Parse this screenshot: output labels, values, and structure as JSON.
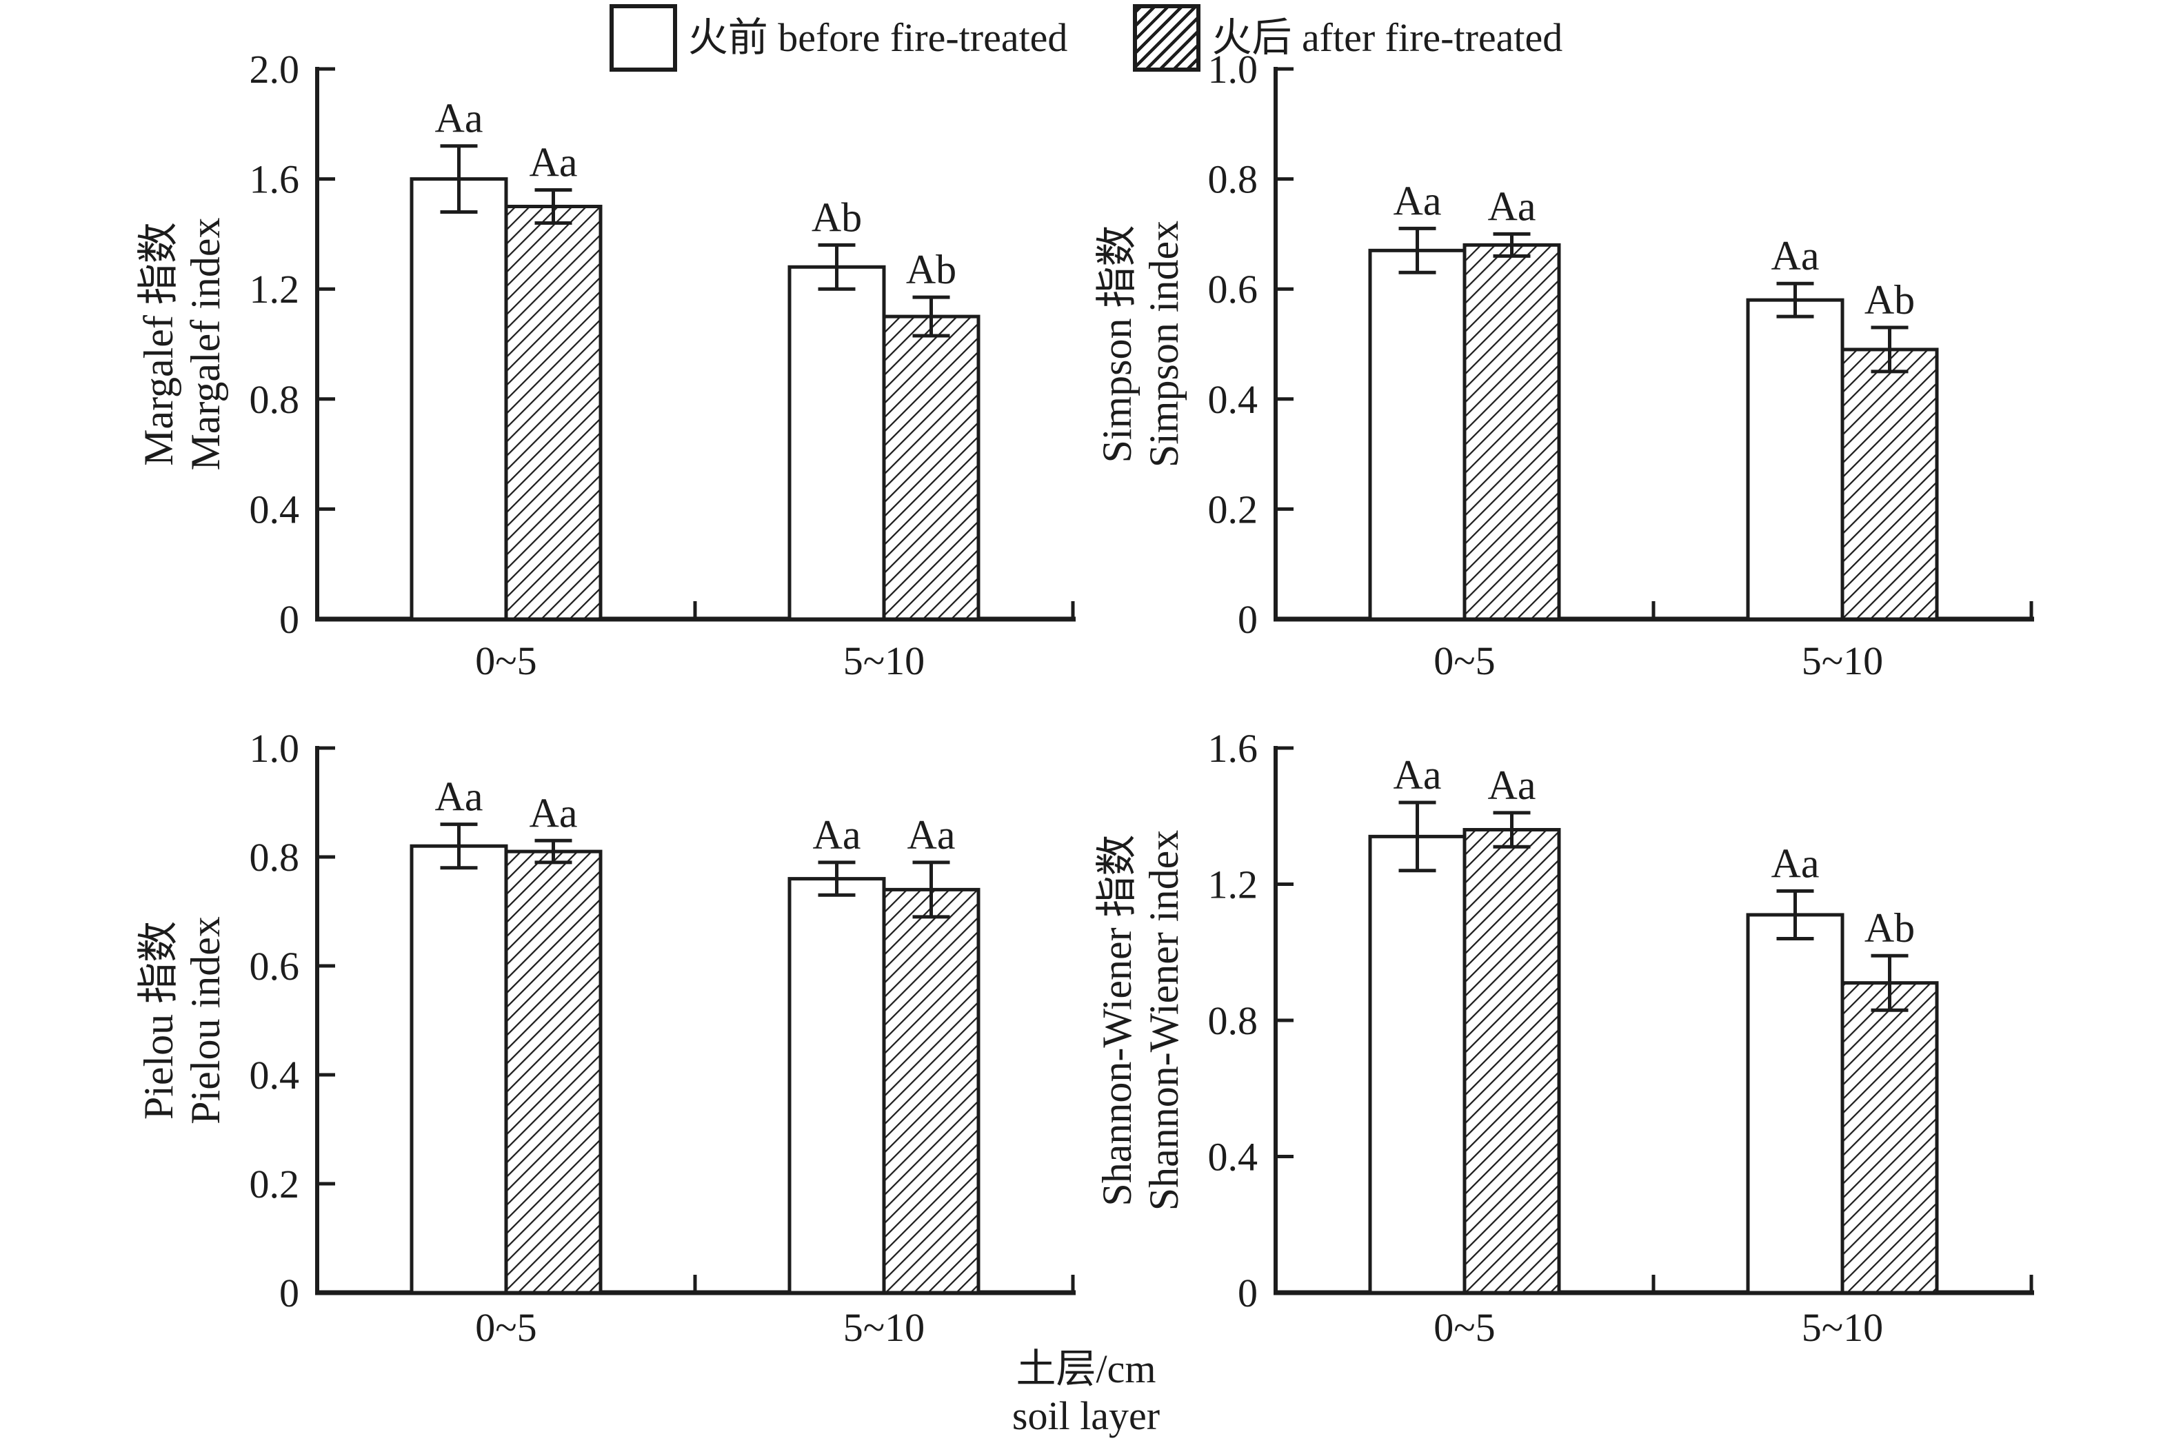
{
  "page": {
    "background": "#ffffff",
    "ink": "#1c1c1c"
  },
  "legend": {
    "items": [
      {
        "label": "火前 before fire-treated",
        "swatch": "plain"
      },
      {
        "label": "火后 after fire-treated",
        "swatch": "hatched"
      }
    ]
  },
  "x_axis_label": {
    "line1": "土层/cm",
    "line2": "soil layer"
  },
  "chart_data": [
    {
      "id": "margalef-index",
      "type": "bar",
      "ylabel_cn": "Margalef 指数",
      "ylabel_en": "Margalef index",
      "ylim": [
        0,
        2.0
      ],
      "yticks": [
        "0",
        "0.4",
        "0.8",
        "1.2",
        "1.6",
        "2.0"
      ],
      "categories": [
        "0~5",
        "5~10"
      ],
      "grid": "off",
      "series": [
        {
          "name": "火前 before fire-treated",
          "pattern": "plain",
          "values": [
            1.6,
            1.28
          ],
          "errors": [
            0.12,
            0.08
          ],
          "sig_labels": [
            "Aa",
            "Ab"
          ]
        },
        {
          "name": "火后 after fire-treated",
          "pattern": "hatched",
          "values": [
            1.5,
            1.1
          ],
          "errors": [
            0.06,
            0.07
          ],
          "sig_labels": [
            "Aa",
            "Ab"
          ]
        }
      ]
    },
    {
      "id": "simpson-index",
      "type": "bar",
      "ylabel_cn": "Simpson 指数",
      "ylabel_en": "Simpson index",
      "ylim": [
        0,
        1.0
      ],
      "yticks": [
        "0",
        "0.2",
        "0.4",
        "0.6",
        "0.8",
        "1.0"
      ],
      "categories": [
        "0~5",
        "5~10"
      ],
      "grid": "off",
      "series": [
        {
          "name": "火前 before fire-treated",
          "pattern": "plain",
          "values": [
            0.67,
            0.58
          ],
          "errors": [
            0.04,
            0.03
          ],
          "sig_labels": [
            "Aa",
            "Aa"
          ]
        },
        {
          "name": "火后 after fire-treated",
          "pattern": "hatched",
          "values": [
            0.68,
            0.49
          ],
          "errors": [
            0.02,
            0.04
          ],
          "sig_labels": [
            "Aa",
            "Ab"
          ]
        }
      ]
    },
    {
      "id": "pielou-index",
      "type": "bar",
      "ylabel_cn": "Pielou 指数",
      "ylabel_en": "Pielou index",
      "ylim": [
        0,
        1.0
      ],
      "yticks": [
        "0",
        "0.2",
        "0.4",
        "0.6",
        "0.8",
        "1.0"
      ],
      "categories": [
        "0~5",
        "5~10"
      ],
      "grid": "off",
      "series": [
        {
          "name": "火前 before fire-treated",
          "pattern": "plain",
          "values": [
            0.82,
            0.76
          ],
          "errors": [
            0.04,
            0.03
          ],
          "sig_labels": [
            "Aa",
            "Aa"
          ]
        },
        {
          "name": "火后 after fire-treated",
          "pattern": "hatched",
          "values": [
            0.81,
            0.74
          ],
          "errors": [
            0.02,
            0.05
          ],
          "sig_labels": [
            "Aa",
            "Aa"
          ]
        }
      ]
    },
    {
      "id": "shannon-wiener-index",
      "type": "bar",
      "ylabel_cn": "Shannon-Wiener 指数",
      "ylabel_en": "Shannon-Wiener index",
      "ylim": [
        0,
        1.6
      ],
      "yticks": [
        "0",
        "0.4",
        "0.8",
        "1.2",
        "1.6"
      ],
      "categories": [
        "0~5",
        "5~10"
      ],
      "grid": "off",
      "series": [
        {
          "name": "火前 before fire-treated",
          "pattern": "plain",
          "values": [
            1.34,
            1.11
          ],
          "errors": [
            0.1,
            0.07
          ],
          "sig_labels": [
            "Aa",
            "Aa"
          ]
        },
        {
          "name": "火后 after fire-treated",
          "pattern": "hatched",
          "values": [
            1.36,
            0.91
          ],
          "errors": [
            0.05,
            0.08
          ],
          "sig_labels": [
            "Aa",
            "Ab"
          ]
        }
      ]
    }
  ]
}
